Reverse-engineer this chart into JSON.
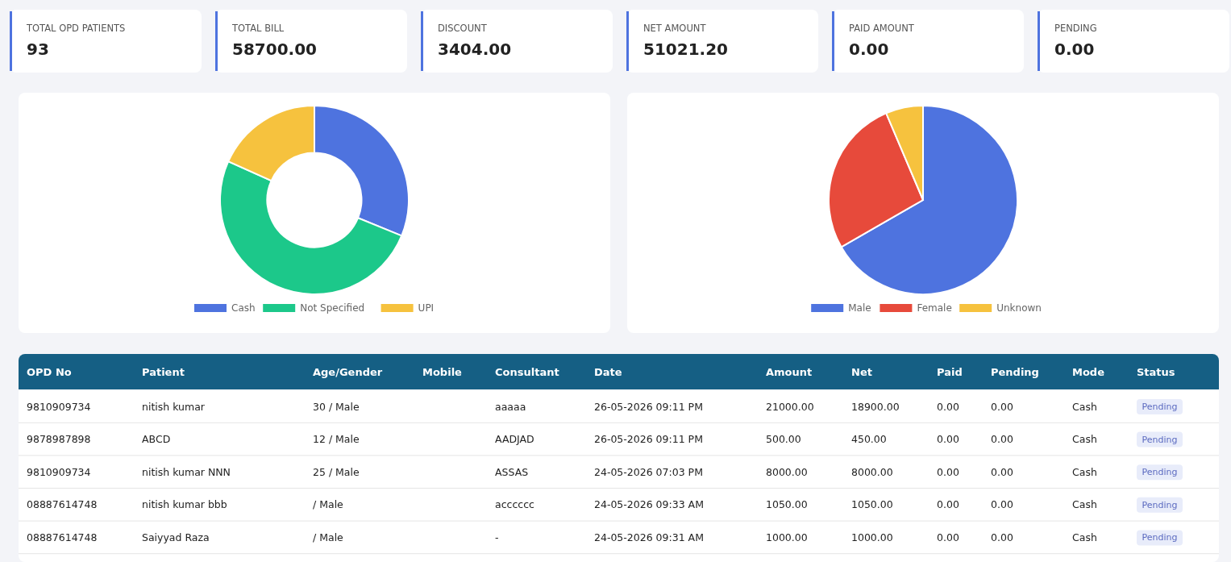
{
  "chart_data": [
    {
      "type": "other",
      "categories": [
        "TOTAL OPD PATIENTS",
        "TOTAL BILL",
        "DISCOUNT",
        "NET AMOUNT",
        "PAID AMOUNT",
        "PENDING"
      ],
      "value_labels": [
        "93",
        "58700.00",
        "3404.00",
        "51021.20",
        "0.00",
        "0.00"
      ]
    },
    {
      "type": "donut",
      "categories": [
        "Cash",
        "Not Specified",
        "UPI"
      ],
      "values": [
        31.2,
        50.5,
        18.3
      ],
      "colors": [
        "#4e73df",
        "#1cc88a",
        "#f6c23e"
      ],
      "legend": "bottom"
    },
    {
      "type": "pie",
      "categories": [
        "Male",
        "Female",
        "Unknown"
      ],
      "values": [
        66.7,
        26.9,
        6.4
      ],
      "colors": [
        "#4e73df",
        "#e74a3b",
        "#f6c23e"
      ],
      "legend": "bottom"
    },
    {
      "type": "other",
      "categories": [
        "OPD No",
        "Patient",
        "Age/Gender",
        "Mobile",
        "Consultant",
        "Date",
        "Amount",
        "Net",
        "Paid",
        "Pending",
        "Mode",
        "Status"
      ],
      "cell_labels": [
        [
          "9810909734",
          "nitish kumar",
          "30 / Male",
          null,
          "aaaaa",
          "26-05-2026 09:11 PM",
          "21000.00",
          "18900.00",
          "0.00",
          "0.00",
          "Cash",
          "Pending"
        ],
        [
          "9878987898",
          "ABCD",
          "12 / Male",
          null,
          "AADJAD",
          "26-05-2026 09:11 PM",
          "500.00",
          "450.00",
          "0.00",
          "0.00",
          "Cash",
          "Pending"
        ],
        [
          "9810909734",
          "nitish kumar NNN",
          "25 / Male",
          null,
          "ASSAS",
          "24-05-2026 07:03 PM",
          "8000.00",
          "8000.00",
          "0.00",
          "0.00",
          "Cash",
          "Pending"
        ],
        [
          "08887614748",
          "nitish kumar bbb",
          "/ Male",
          null,
          "acccccc",
          "24-05-2026 09:33 AM",
          "1050.00",
          "1050.00",
          "0.00",
          "0.00",
          "Cash",
          "Pending"
        ],
        [
          "08887614748",
          "Saiyyad Raza",
          "/ Male",
          null,
          "-",
          "24-05-2026 09:31 AM",
          "1000.00",
          "1000.00",
          "0.00",
          "0.00",
          "Cash",
          "Pending"
        ]
      ]
    }
  ]
}
